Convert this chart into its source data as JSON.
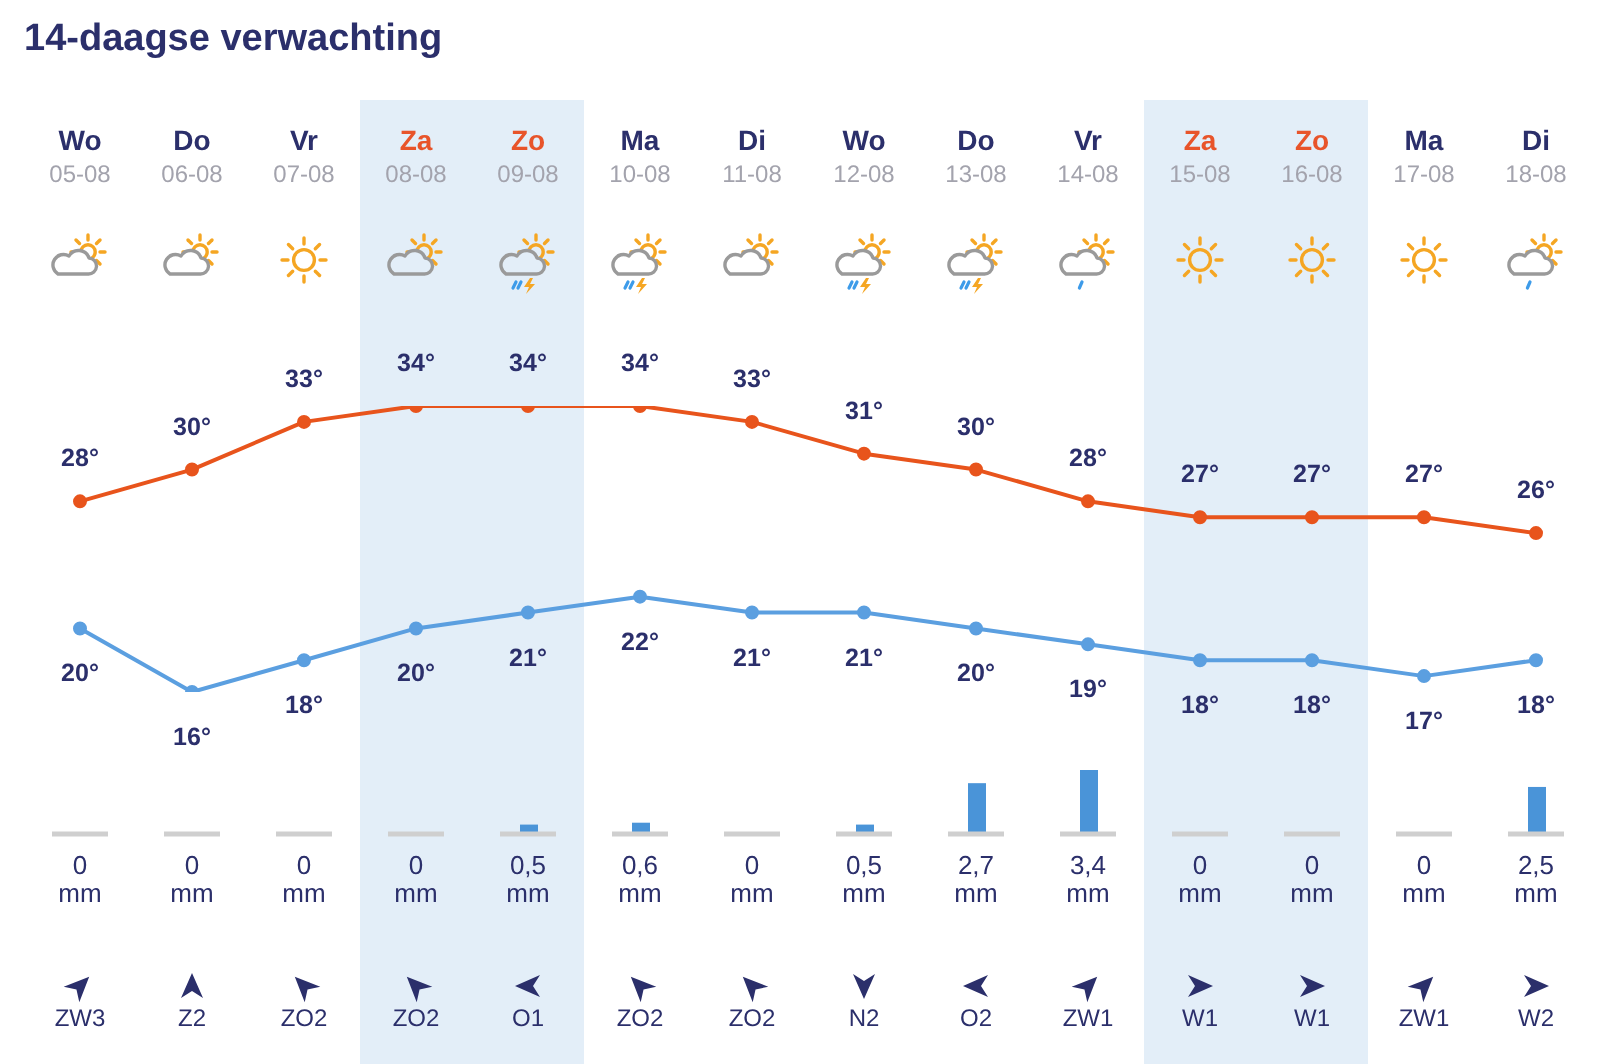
{
  "chart_data": [
    {
      "type": "line",
      "title": "14-daagse verwachting",
      "categories": [
        "Wo\n05-08",
        "Do\n06-08",
        "Vr\n07-08",
        "Za\n08-08",
        "Zo\n09-08",
        "Ma\n10-08",
        "Di\n11-08",
        "Wo\n12-08",
        "Do\n13-08",
        "Vr\n14-08",
        "Za\n15-08",
        "Zo\n16-08",
        "Ma\n17-08",
        "Di\n18-08"
      ],
      "series": [
        {
          "color": "#e8541c",
          "values": [
            28,
            30,
            33,
            34,
            34,
            34,
            33,
            31,
            30,
            28,
            27,
            27,
            27,
            26
          ],
          "value_labels": [
            "28°",
            "30°",
            "33°",
            "34°",
            "34°",
            "34°",
            "33°",
            "31°",
            "30°",
            "28°",
            "27°",
            "27°",
            "27°",
            "26°"
          ]
        },
        {
          "color": "#5b9fe0",
          "values": [
            20,
            16,
            18,
            20,
            21,
            22,
            21,
            21,
            20,
            19,
            18,
            18,
            17,
            18
          ],
          "value_labels": [
            "20°",
            "16°",
            "18°",
            "20°",
            "21°",
            "22°",
            "21°",
            "21°",
            "20°",
            "19°",
            "18°",
            "18°",
            "17°",
            "18°"
          ]
        }
      ],
      "marker": "circle",
      "tick_labels": "x",
      "bands": [
        {
          "axis": "x",
          "from": "Za\n08-08",
          "to": "Zo\n09-08",
          "color": "#e3eef8"
        },
        {
          "axis": "x",
          "from": "Za\n15-08",
          "to": "Zo\n16-08",
          "color": "#e3eef8"
        }
      ]
    },
    {
      "type": "bar",
      "categories": [
        "Wo\n05-08",
        "Do\n06-08",
        "Vr\n07-08",
        "Za\n08-08",
        "Zo\n09-08",
        "Ma\n10-08",
        "Di\n11-08",
        "Wo\n12-08",
        "Do\n13-08",
        "Vr\n14-08",
        "Za\n15-08",
        "Zo\n16-08",
        "Ma\n17-08",
        "Di\n18-08"
      ],
      "series": [
        {
          "color": "#4a94d8",
          "values": [
            0,
            0,
            0,
            0,
            0.5,
            0.6,
            0,
            0.5,
            2.7,
            3.4,
            0,
            0,
            0,
            2.5
          ],
          "value_labels": [
            "0\nmm",
            "0\nmm",
            "0\nmm",
            "0\nmm",
            "0,5\nmm",
            "0,6\nmm",
            "0\nmm",
            "0,5\nmm",
            "2,7\nmm",
            "3,4\nmm",
            "0\nmm",
            "0\nmm",
            "0\nmm",
            "2,5\nmm"
          ]
        }
      ],
      "tick_labels": false,
      "bands": [
        {
          "axis": "x",
          "from": "Za\n08-08",
          "to": "Zo\n09-08",
          "color": "#e3eef8"
        },
        {
          "axis": "x",
          "from": "Za\n15-08",
          "to": "Zo\n16-08",
          "color": "#e3eef8"
        }
      ],
      "annotations": [
        "ZW3",
        "Z2",
        "ZO2",
        "ZO2",
        "O1",
        "ZO2",
        "ZO2",
        "N2",
        "O2",
        "ZW1",
        "W1",
        "W1",
        "ZW1",
        "W2"
      ]
    }
  ]
}
